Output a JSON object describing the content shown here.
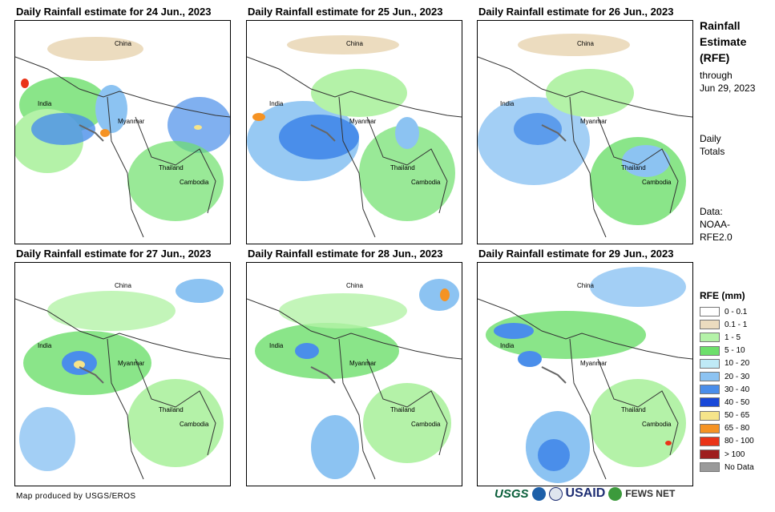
{
  "panels": [
    {
      "title": "Daily Rainfall estimate for 24 Jun., 2023"
    },
    {
      "title": "Daily Rainfall estimate for 25 Jun., 2023"
    },
    {
      "title": "Daily Rainfall estimate for 26 Jun., 2023"
    },
    {
      "title": "Daily Rainfall estimate for 27 Jun., 2023"
    },
    {
      "title": "Daily Rainfall estimate for 28 Jun., 2023"
    },
    {
      "title": "Daily Rainfall estimate for 29 Jun., 2023"
    }
  ],
  "map_labels": {
    "china": "China",
    "india": "India",
    "myanmar": "Myanmar",
    "thailand": "Thailand",
    "cambodia": "Cambodia"
  },
  "side": {
    "title_line1": "Rainfall",
    "title_line2": "Estimate",
    "title_line3": "(RFE)",
    "through_line1": "through",
    "through_line2": "Jun 29, 2023",
    "daily_line1": "Daily",
    "daily_line2": "Totals",
    "data_line1": "Data:",
    "data_line2": "NOAA-",
    "data_line3": "RFE2.0"
  },
  "legend": {
    "title": "RFE (mm)",
    "items": [
      {
        "label": "0 - 0.1",
        "color": "#ffffff"
      },
      {
        "label": "0.1 - 1",
        "color": "#ecdcbf"
      },
      {
        "label": "1 - 5",
        "color": "#b4f2a8"
      },
      {
        "label": "5 - 10",
        "color": "#6ddf6b"
      },
      {
        "label": "10 - 20",
        "color": "#bfeaf6"
      },
      {
        "label": "20 - 30",
        "color": "#8cc3f2"
      },
      {
        "label": "30 - 40",
        "color": "#4a8eea"
      },
      {
        "label": "40 - 50",
        "color": "#1848d8"
      },
      {
        "label": "50 - 65",
        "color": "#f6e48a"
      },
      {
        "label": "65 - 80",
        "color": "#f59324"
      },
      {
        "label": "80 - 100",
        "color": "#ea3418"
      },
      {
        "label": "> 100",
        "color": "#9e1e1e"
      },
      {
        "label": "No Data",
        "color": "#9a9a9a"
      }
    ]
  },
  "footer": {
    "credit": "Map produced by USGS/EROS"
  },
  "logos": {
    "usgs": "USGS",
    "usaid": "USAID",
    "fews": "FEWS NET"
  }
}
